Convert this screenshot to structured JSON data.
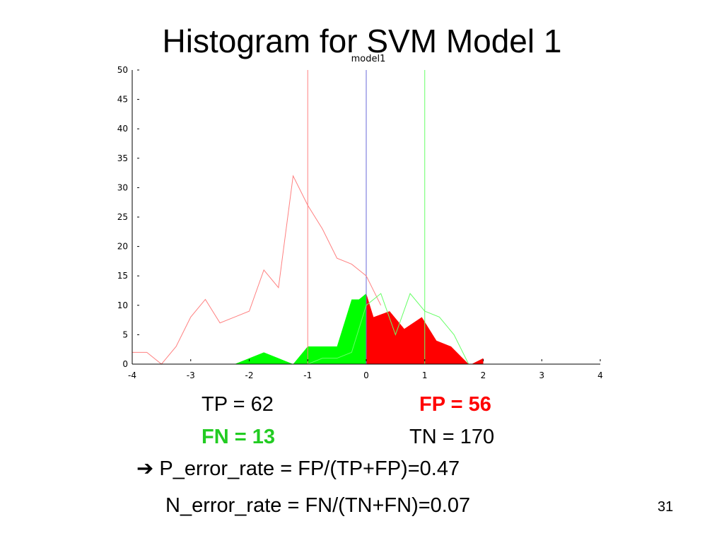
{
  "slide": {
    "title": "Histogram for SVM Model 1",
    "page_number": "31"
  },
  "stats": {
    "tp": "TP = 62",
    "fp": "FP = 56",
    "fn": "FN = 13",
    "tn": "TN = 170",
    "arrow": "➔",
    "p_error": "P_error_rate = FP/(TP+FP)=0.47",
    "n_error": "N_error_rate = FN/(TN+FN)=0.07"
  },
  "colors": {
    "fp": "#ff0000",
    "fn": "#22cc22",
    "negative_line": "#ff8080",
    "positive_line": "#66ff66",
    "zero_line": "#6a6ad8",
    "fill_green": "#00ff00",
    "fill_red": "#ff0000"
  },
  "chart_data": {
    "type": "area",
    "title": "model1",
    "xlim": [
      -4,
      4
    ],
    "ylim": [
      0,
      50
    ],
    "xticks": [
      -4,
      -3,
      -2,
      -1,
      0,
      1,
      2,
      3,
      4
    ],
    "yticks": [
      0,
      5,
      10,
      15,
      20,
      25,
      30,
      35,
      40,
      45,
      50
    ],
    "vertical_lines": [
      {
        "x": -1,
        "color": "#ff8080"
      },
      {
        "x": 0,
        "color": "#6a6ad8"
      },
      {
        "x": 1,
        "color": "#66ff66"
      }
    ],
    "series": [
      {
        "style": "line",
        "color": "#ff8080",
        "x": [
          -4,
          -3.75,
          -3.5,
          -3.25,
          -3,
          -2.75,
          -2.5,
          -2.25,
          -2,
          -1.75,
          -1.5,
          -1.25,
          -1,
          -0.75,
          -0.5,
          -0.25,
          0,
          0.25
        ],
        "y": [
          2,
          2,
          0,
          3,
          8,
          11,
          7,
          8,
          9,
          16,
          13,
          32,
          27,
          23,
          18,
          17,
          15,
          10
        ]
      },
      {
        "style": "line",
        "color": "#66ff66",
        "x": [
          -4,
          -1.5,
          -1.25,
          -1,
          -0.75,
          -0.5,
          -0.25,
          0,
          0.25,
          0.5,
          0.75,
          1,
          1.25,
          1.5,
          1.75,
          2
        ],
        "y": [
          0,
          0,
          0,
          0,
          1,
          1,
          2,
          10,
          12,
          5,
          12,
          9,
          8,
          5,
          0,
          0
        ]
      },
      {
        "style": "fill",
        "color": "#00ff00",
        "x": [
          -2.25,
          -2,
          -1.75,
          -1.5,
          -1.25,
          -1,
          -0.75,
          -0.5,
          -0.25,
          -0.125,
          0
        ],
        "y": [
          0,
          1,
          2,
          1,
          0,
          3,
          3,
          3,
          11,
          11,
          12
        ]
      },
      {
        "style": "fill",
        "color": "#ff0000",
        "x": [
          0,
          0.125,
          0.4,
          0.65,
          0.95,
          1.2,
          1.45,
          1.75
        ],
        "y": [
          12,
          8,
          9,
          6,
          8,
          4,
          3,
          0
        ]
      },
      {
        "style": "fill",
        "color": "#ff0000",
        "x": [
          1.8,
          2,
          2
        ],
        "y": [
          0,
          1,
          0
        ]
      }
    ]
  }
}
